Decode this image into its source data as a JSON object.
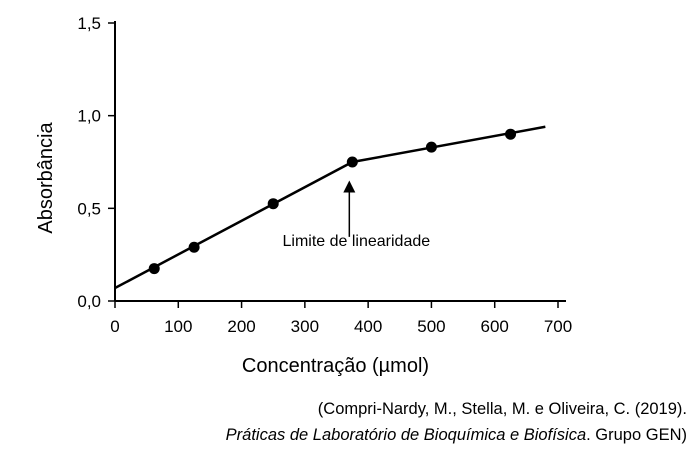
{
  "chart_data": {
    "type": "line",
    "title": "",
    "xlabel": "Concentração (µmol)",
    "ylabel": "Absorbância",
    "xlim": [
      0,
      700
    ],
    "ylim": [
      0,
      1.5
    ],
    "xticks": [
      "0",
      "100",
      "200",
      "300",
      "400",
      "500",
      "600",
      "700"
    ],
    "xtick_values": [
      0,
      100,
      200,
      300,
      400,
      500,
      600,
      700
    ],
    "yticks": [
      "0,0",
      "0,5",
      "1,0",
      "1,5"
    ],
    "ytick_values": [
      0,
      0.5,
      1.0,
      1.5
    ],
    "grid": false,
    "series": [
      {
        "name": "Absorbância",
        "points": [
          [
            62,
            0.175
          ],
          [
            125,
            0.29
          ],
          [
            250,
            0.525
          ],
          [
            375,
            0.75
          ],
          [
            500,
            0.83
          ],
          [
            625,
            0.9
          ]
        ],
        "line": [
          [
            0,
            0.07
          ],
          [
            375,
            0.75
          ],
          [
            680,
            0.94
          ]
        ]
      }
    ],
    "annotation": {
      "text": "Limite de linearidade",
      "x": 375,
      "arrow_tip_y": 0.65,
      "arrow_base_y": 0.4
    }
  },
  "citation": {
    "line1": "(Compri-Nardy, M., Stella, M. e Oliveira, C. (2019).",
    "line2_title": "Práticas de Laboratório de Bioquímica e Biofísica",
    "line2_rest": ". Grupo GEN)"
  }
}
